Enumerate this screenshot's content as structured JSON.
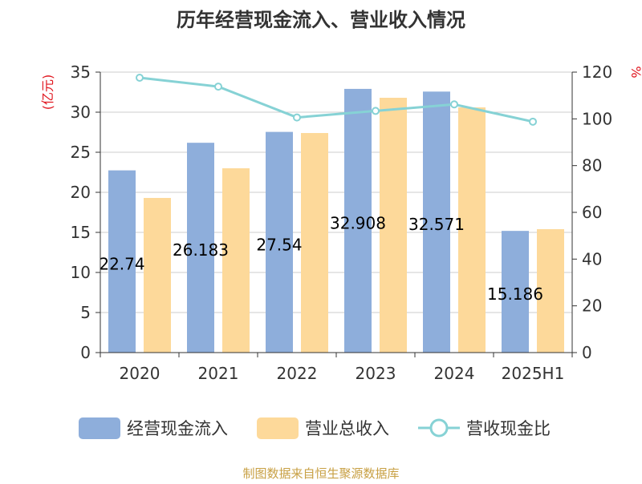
{
  "chart_data": {
    "type": "bar",
    "title": "历年经营现金流入、营业收入情况",
    "y_left_label": "(亿元)",
    "y_right_label": "%",
    "y_left_ticks": [
      "0",
      "5",
      "10",
      "15",
      "20",
      "25",
      "30",
      "35"
    ],
    "y_right_ticks": [
      "0",
      "20",
      "40",
      "60",
      "80",
      "100",
      "120"
    ],
    "y_left_range": [
      0,
      35
    ],
    "y_right_range": [
      0,
      120
    ],
    "categories": [
      "2020",
      "2021",
      "2022",
      "2023",
      "2024",
      "2025H1"
    ],
    "series": [
      {
        "name": "经营现金流入",
        "kind": "bar",
        "color": "#8eaedb",
        "values": [
          22.74,
          26.183,
          27.54,
          32.908,
          32.571,
          15.186
        ],
        "labels": [
          "22.74",
          "26.183",
          "27.54",
          "32.908",
          "32.571",
          "15.186"
        ]
      },
      {
        "name": "营业总收入",
        "kind": "bar",
        "color": "#fdd99a",
        "values": [
          19.3,
          23.0,
          27.4,
          31.8,
          30.6,
          15.4
        ]
      },
      {
        "name": "营收现金比",
        "kind": "line",
        "axis": "right",
        "color": "#86d2d5",
        "values": [
          117.6,
          113.8,
          100.6,
          103.4,
          106.2,
          98.8
        ]
      }
    ],
    "grid": true,
    "legend_position": "bottom"
  },
  "footer": {
    "source": "制图数据来自恒生聚源数据库"
  },
  "colors": {
    "title": "#333333",
    "axis_label": "#e0161f",
    "axis": "#333333",
    "tick_text": "#333333",
    "grid": "#cccccc",
    "footer": "#c8a044"
  }
}
